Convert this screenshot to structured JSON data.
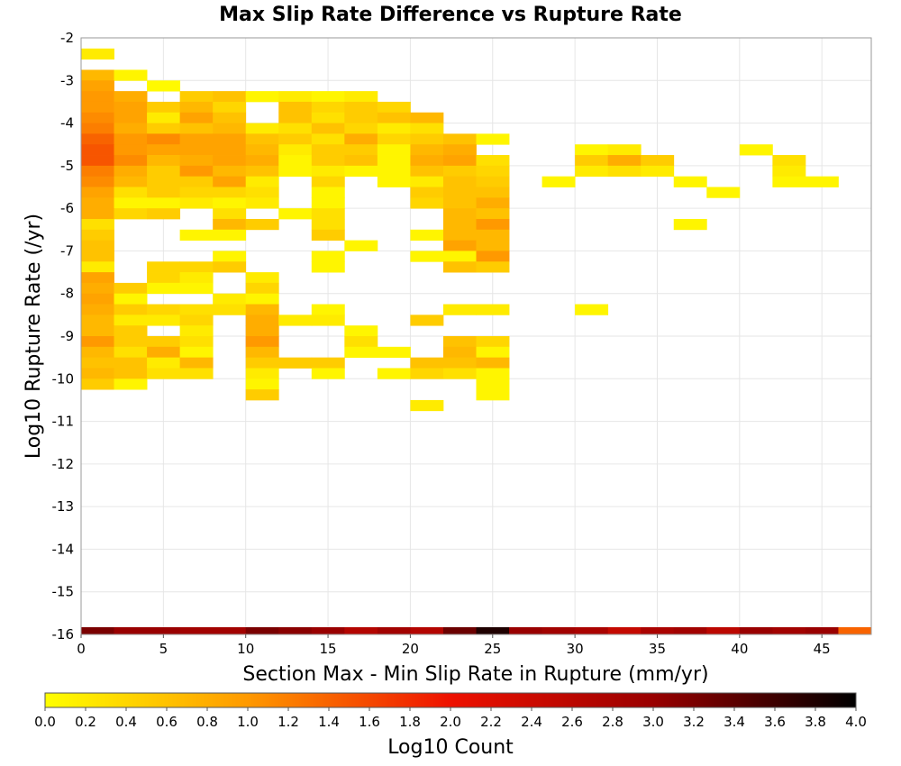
{
  "chart_data": {
    "type": "heatmap",
    "title": "Max Slip Rate Difference vs Rupture Rate",
    "xlabel": "Section Max - Min Slip Rate in Rupture (mm/yr)",
    "ylabel": "Log10 Rupture Rate (/yr)",
    "xlim": [
      0,
      48
    ],
    "ylim": [
      -16,
      -2
    ],
    "x_bin_width": 2,
    "y_bin_width": 0.25,
    "x_ticks": [
      "0",
      "5",
      "10",
      "15",
      "20",
      "25",
      "30",
      "35",
      "40",
      "45"
    ],
    "y_ticks": [
      "-2",
      "-3",
      "-4",
      "-5",
      "-6",
      "-7",
      "-8",
      "-9",
      "-10",
      "-11",
      "-12",
      "-13",
      "-14",
      "-15",
      "-16"
    ],
    "grid": true,
    "colorbar": {
      "label": "Log10 Count",
      "range": [
        0.0,
        4.0
      ],
      "ticks": [
        "0.0",
        "0.2",
        "0.4",
        "0.6",
        "0.8",
        "1.0",
        "1.2",
        "1.4",
        "1.6",
        "1.8",
        "2.0",
        "2.2",
        "2.4",
        "2.6",
        "2.8",
        "3.0",
        "3.2",
        "3.4",
        "3.6",
        "3.8",
        "4.0"
      ],
      "colors": [
        "#ffff00",
        "#ff9900",
        "#ee1100",
        "#990000",
        "#000000"
      ]
    },
    "cells_note": "each cell: [x_bin_start, y_bin_start, log10_count]",
    "cells": [
      [
        0,
        -2.5,
        0.2
      ],
      [
        0,
        -3,
        0.7
      ],
      [
        2,
        -3,
        0.1
      ],
      [
        0,
        -3.25,
        0.9
      ],
      [
        4,
        -3.25,
        0.05
      ],
      [
        0,
        -3.5,
        1.0
      ],
      [
        2,
        -3.5,
        0.8
      ],
      [
        6,
        -3.5,
        0.5
      ],
      [
        8,
        -3.5,
        0.6
      ],
      [
        10,
        -3.5,
        0.1
      ],
      [
        12,
        -3.5,
        0.2
      ],
      [
        14,
        -3.5,
        0.1
      ],
      [
        16,
        -3.5,
        0.2
      ],
      [
        0,
        -3.75,
        1.0
      ],
      [
        2,
        -3.75,
        0.9
      ],
      [
        4,
        -3.75,
        0.5
      ],
      [
        6,
        -3.75,
        0.7
      ],
      [
        8,
        -3.75,
        0.4
      ],
      [
        12,
        -3.75,
        0.6
      ],
      [
        14,
        -3.75,
        0.4
      ],
      [
        16,
        -3.75,
        0.5
      ],
      [
        18,
        -3.75,
        0.4
      ],
      [
        0,
        -4,
        1.1
      ],
      [
        2,
        -4,
        0.9
      ],
      [
        4,
        -4,
        0.2
      ],
      [
        6,
        -4,
        0.9
      ],
      [
        8,
        -4,
        0.6
      ],
      [
        12,
        -4,
        0.6
      ],
      [
        14,
        -4,
        0.3
      ],
      [
        16,
        -4,
        0.5
      ],
      [
        18,
        -4,
        0.6
      ],
      [
        20,
        -4,
        0.7
      ],
      [
        0,
        -4.25,
        1.2
      ],
      [
        2,
        -4.25,
        0.8
      ],
      [
        4,
        -4.25,
        0.5
      ],
      [
        6,
        -4.25,
        0.6
      ],
      [
        8,
        -4.25,
        0.7
      ],
      [
        10,
        -4.25,
        0.2
      ],
      [
        12,
        -4.25,
        0.3
      ],
      [
        14,
        -4.25,
        0.6
      ],
      [
        16,
        -4.25,
        0.4
      ],
      [
        18,
        -4.25,
        0.2
      ],
      [
        20,
        -4.25,
        0.3
      ],
      [
        0,
        -4.5,
        1.4
      ],
      [
        2,
        -4.5,
        1.0
      ],
      [
        4,
        -4.5,
        1.1
      ],
      [
        6,
        -4.5,
        0.9
      ],
      [
        8,
        -4.5,
        0.9
      ],
      [
        10,
        -4.5,
        0.6
      ],
      [
        12,
        -4.5,
        0.5
      ],
      [
        14,
        -4.5,
        0.3
      ],
      [
        16,
        -4.5,
        0.8
      ],
      [
        18,
        -4.5,
        0.4
      ],
      [
        20,
        -4.5,
        0.5
      ],
      [
        22,
        -4.5,
        0.6
      ],
      [
        24,
        -4.5,
        0.1
      ],
      [
        0,
        -4.75,
        1.5
      ],
      [
        2,
        -4.75,
        1.0
      ],
      [
        4,
        -4.75,
        0.9
      ],
      [
        6,
        -4.75,
        0.9
      ],
      [
        8,
        -4.75,
        0.9
      ],
      [
        10,
        -4.75,
        0.7
      ],
      [
        12,
        -4.75,
        0.2
      ],
      [
        14,
        -4.75,
        0.5
      ],
      [
        16,
        -4.75,
        0.5
      ],
      [
        18,
        -4.75,
        0.1
      ],
      [
        20,
        -4.75,
        0.7
      ],
      [
        22,
        -4.75,
        0.8
      ],
      [
        30,
        -4.75,
        0.1
      ],
      [
        32,
        -4.75,
        0.2
      ],
      [
        40,
        -4.75,
        0.1
      ],
      [
        0,
        -5,
        1.5
      ],
      [
        2,
        -5,
        1.1
      ],
      [
        4,
        -5,
        0.7
      ],
      [
        6,
        -5,
        0.8
      ],
      [
        8,
        -5,
        0.9
      ],
      [
        10,
        -5,
        0.8
      ],
      [
        12,
        -5,
        0.1
      ],
      [
        14,
        -5,
        0.5
      ],
      [
        16,
        -5,
        0.6
      ],
      [
        18,
        -5,
        0.1
      ],
      [
        20,
        -5,
        0.8
      ],
      [
        22,
        -5,
        0.9
      ],
      [
        24,
        -5,
        0.3
      ],
      [
        30,
        -5,
        0.5
      ],
      [
        32,
        -5,
        0.8
      ],
      [
        34,
        -5,
        0.5
      ],
      [
        42,
        -5,
        0.3
      ],
      [
        0,
        -5.25,
        1.2
      ],
      [
        2,
        -5.25,
        0.8
      ],
      [
        4,
        -5.25,
        0.5
      ],
      [
        6,
        -5.25,
        1.0
      ],
      [
        8,
        -5.25,
        0.7
      ],
      [
        10,
        -5.25,
        0.6
      ],
      [
        12,
        -5.25,
        0.1
      ],
      [
        14,
        -5.25,
        0.2
      ],
      [
        16,
        -5.25,
        0.1
      ],
      [
        18,
        -5.25,
        0.1
      ],
      [
        20,
        -5.25,
        0.6
      ],
      [
        22,
        -5.25,
        0.5
      ],
      [
        24,
        -5.25,
        0.4
      ],
      [
        30,
        -5.25,
        0.2
      ],
      [
        32,
        -5.25,
        0.3
      ],
      [
        34,
        -5.25,
        0.2
      ],
      [
        42,
        -5.25,
        0.2
      ],
      [
        0,
        -5.5,
        1.1
      ],
      [
        2,
        -5.5,
        0.7
      ],
      [
        4,
        -5.5,
        0.5
      ],
      [
        6,
        -5.5,
        0.5
      ],
      [
        8,
        -5.5,
        0.9
      ],
      [
        10,
        -5.5,
        0.2
      ],
      [
        14,
        -5.5,
        0.4
      ],
      [
        18,
        -5.5,
        0.1
      ],
      [
        20,
        -5.5,
        0.2
      ],
      [
        22,
        -5.5,
        0.6
      ],
      [
        24,
        -5.5,
        0.5
      ],
      [
        28,
        -5.5,
        0.1
      ],
      [
        36,
        -5.5,
        0.1
      ],
      [
        42,
        -5.5,
        0.1
      ],
      [
        44,
        -5.5,
        0.1
      ],
      [
        0,
        -5.75,
        0.9
      ],
      [
        2,
        -5.75,
        0.3
      ],
      [
        4,
        -5.75,
        0.5
      ],
      [
        6,
        -5.75,
        0.4
      ],
      [
        8,
        -5.75,
        0.4
      ],
      [
        10,
        -5.75,
        0.3
      ],
      [
        14,
        -5.75,
        0.1
      ],
      [
        20,
        -5.75,
        0.5
      ],
      [
        22,
        -5.75,
        0.6
      ],
      [
        24,
        -5.75,
        0.6
      ],
      [
        38,
        -5.75,
        0.1
      ],
      [
        0,
        -6,
        0.8
      ],
      [
        2,
        -6,
        0.1
      ],
      [
        4,
        -6,
        0.1
      ],
      [
        6,
        -6,
        0.2
      ],
      [
        8,
        -6,
        0.1
      ],
      [
        10,
        -6,
        0.2
      ],
      [
        14,
        -6,
        0.1
      ],
      [
        20,
        -6,
        0.4
      ],
      [
        22,
        -6,
        0.6
      ],
      [
        24,
        -6,
        0.8
      ],
      [
        0,
        -6.25,
        0.8
      ],
      [
        2,
        -6.25,
        0.4
      ],
      [
        4,
        -6.25,
        0.5
      ],
      [
        8,
        -6.25,
        0.3
      ],
      [
        12,
        -6.25,
        0.1
      ],
      [
        14,
        -6.25,
        0.3
      ],
      [
        22,
        -6.25,
        0.7
      ],
      [
        24,
        -6.25,
        0.6
      ],
      [
        0,
        -6.5,
        0.3
      ],
      [
        8,
        -6.5,
        0.7
      ],
      [
        10,
        -6.5,
        0.5
      ],
      [
        14,
        -6.5,
        0.3
      ],
      [
        22,
        -6.5,
        0.7
      ],
      [
        24,
        -6.5,
        1.0
      ],
      [
        36,
        -6.5,
        0.1
      ],
      [
        0,
        -6.75,
        0.5
      ],
      [
        6,
        -6.75,
        0.1
      ],
      [
        8,
        -6.75,
        0.1
      ],
      [
        14,
        -6.75,
        0.5
      ],
      [
        20,
        -6.75,
        0.1
      ],
      [
        22,
        -6.75,
        0.7
      ],
      [
        24,
        -6.75,
        0.7
      ],
      [
        0,
        -7,
        0.6
      ],
      [
        16,
        -7,
        0.1
      ],
      [
        22,
        -7,
        0.9
      ],
      [
        24,
        -7,
        0.7
      ],
      [
        0,
        -7.25,
        0.6
      ],
      [
        8,
        -7.25,
        0.1
      ],
      [
        14,
        -7.25,
        0.1
      ],
      [
        20,
        -7.25,
        0.1
      ],
      [
        22,
        -7.25,
        0.1
      ],
      [
        24,
        -7.25,
        1.0
      ],
      [
        0,
        -7.5,
        0.2
      ],
      [
        4,
        -7.5,
        0.4
      ],
      [
        6,
        -7.5,
        0.4
      ],
      [
        8,
        -7.5,
        0.5
      ],
      [
        14,
        -7.5,
        0.1
      ],
      [
        22,
        -7.5,
        0.6
      ],
      [
        24,
        -7.5,
        0.5
      ],
      [
        0,
        -7.75,
        0.9
      ],
      [
        4,
        -7.75,
        0.4
      ],
      [
        6,
        -7.75,
        0.2
      ],
      [
        10,
        -7.75,
        0.2
      ],
      [
        0,
        -8,
        0.8
      ],
      [
        2,
        -8,
        0.5
      ],
      [
        4,
        -8,
        0.1
      ],
      [
        6,
        -8,
        0.1
      ],
      [
        10,
        -8,
        0.4
      ],
      [
        0,
        -8.25,
        0.9
      ],
      [
        2,
        -8.25,
        0.1
      ],
      [
        8,
        -8.25,
        0.2
      ],
      [
        10,
        -8.25,
        0.1
      ],
      [
        0,
        -8.5,
        0.8
      ],
      [
        2,
        -8.5,
        0.5
      ],
      [
        4,
        -8.5,
        0.4
      ],
      [
        6,
        -8.5,
        0.3
      ],
      [
        8,
        -8.5,
        0.3
      ],
      [
        10,
        -8.5,
        0.7
      ],
      [
        14,
        -8.5,
        0.1
      ],
      [
        22,
        -8.5,
        0.2
      ],
      [
        24,
        -8.5,
        0.2
      ],
      [
        30,
        -8.5,
        0.1
      ],
      [
        0,
        -8.75,
        0.7
      ],
      [
        2,
        -8.75,
        0.2
      ],
      [
        4,
        -8.75,
        0.2
      ],
      [
        6,
        -8.75,
        0.4
      ],
      [
        10,
        -8.75,
        0.8
      ],
      [
        12,
        -8.75,
        0.2
      ],
      [
        14,
        -8.75,
        0.2
      ],
      [
        20,
        -8.75,
        0.5
      ],
      [
        0,
        -9,
        0.7
      ],
      [
        2,
        -9,
        0.5
      ],
      [
        6,
        -9,
        0.2
      ],
      [
        10,
        -9,
        0.8
      ],
      [
        16,
        -9,
        0.1
      ],
      [
        0,
        -9.25,
        1.0
      ],
      [
        2,
        -9.25,
        0.5
      ],
      [
        4,
        -9.25,
        0.5
      ],
      [
        6,
        -9.25,
        0.3
      ],
      [
        10,
        -9.25,
        1.0
      ],
      [
        16,
        -9.25,
        0.3
      ],
      [
        22,
        -9.25,
        0.6
      ],
      [
        24,
        -9.25,
        0.4
      ],
      [
        0,
        -9.5,
        0.7
      ],
      [
        2,
        -9.5,
        0.3
      ],
      [
        4,
        -9.5,
        0.8
      ],
      [
        6,
        -9.5,
        0.1
      ],
      [
        10,
        -9.5,
        0.7
      ],
      [
        16,
        -9.5,
        0.1
      ],
      [
        18,
        -9.5,
        0.1
      ],
      [
        22,
        -9.5,
        0.7
      ],
      [
        24,
        -9.5,
        0.1
      ],
      [
        0,
        -9.75,
        0.6
      ],
      [
        2,
        -9.75,
        0.6
      ],
      [
        4,
        -9.75,
        0.2
      ],
      [
        6,
        -9.75,
        0.7
      ],
      [
        10,
        -9.75,
        0.5
      ],
      [
        12,
        -9.75,
        0.5
      ],
      [
        14,
        -9.75,
        0.5
      ],
      [
        20,
        -9.75,
        0.6
      ],
      [
        22,
        -9.75,
        0.6
      ],
      [
        24,
        -9.75,
        0.7
      ],
      [
        0,
        -10,
        0.7
      ],
      [
        2,
        -10,
        0.6
      ],
      [
        4,
        -10,
        0.3
      ],
      [
        6,
        -10,
        0.3
      ],
      [
        10,
        -10,
        0.2
      ],
      [
        14,
        -10,
        0.1
      ],
      [
        18,
        -10,
        0.1
      ],
      [
        20,
        -10,
        0.4
      ],
      [
        22,
        -10,
        0.3
      ],
      [
        24,
        -10,
        0.1
      ],
      [
        0,
        -10.25,
        0.5
      ],
      [
        2,
        -10.25,
        0.1
      ],
      [
        10,
        -10.25,
        0.1
      ],
      [
        24,
        -10.25,
        0.1
      ],
      [
        10,
        -10.5,
        0.5
      ],
      [
        24,
        -10.5,
        0.1
      ],
      [
        20,
        -10.75,
        0.2
      ]
    ]
  }
}
